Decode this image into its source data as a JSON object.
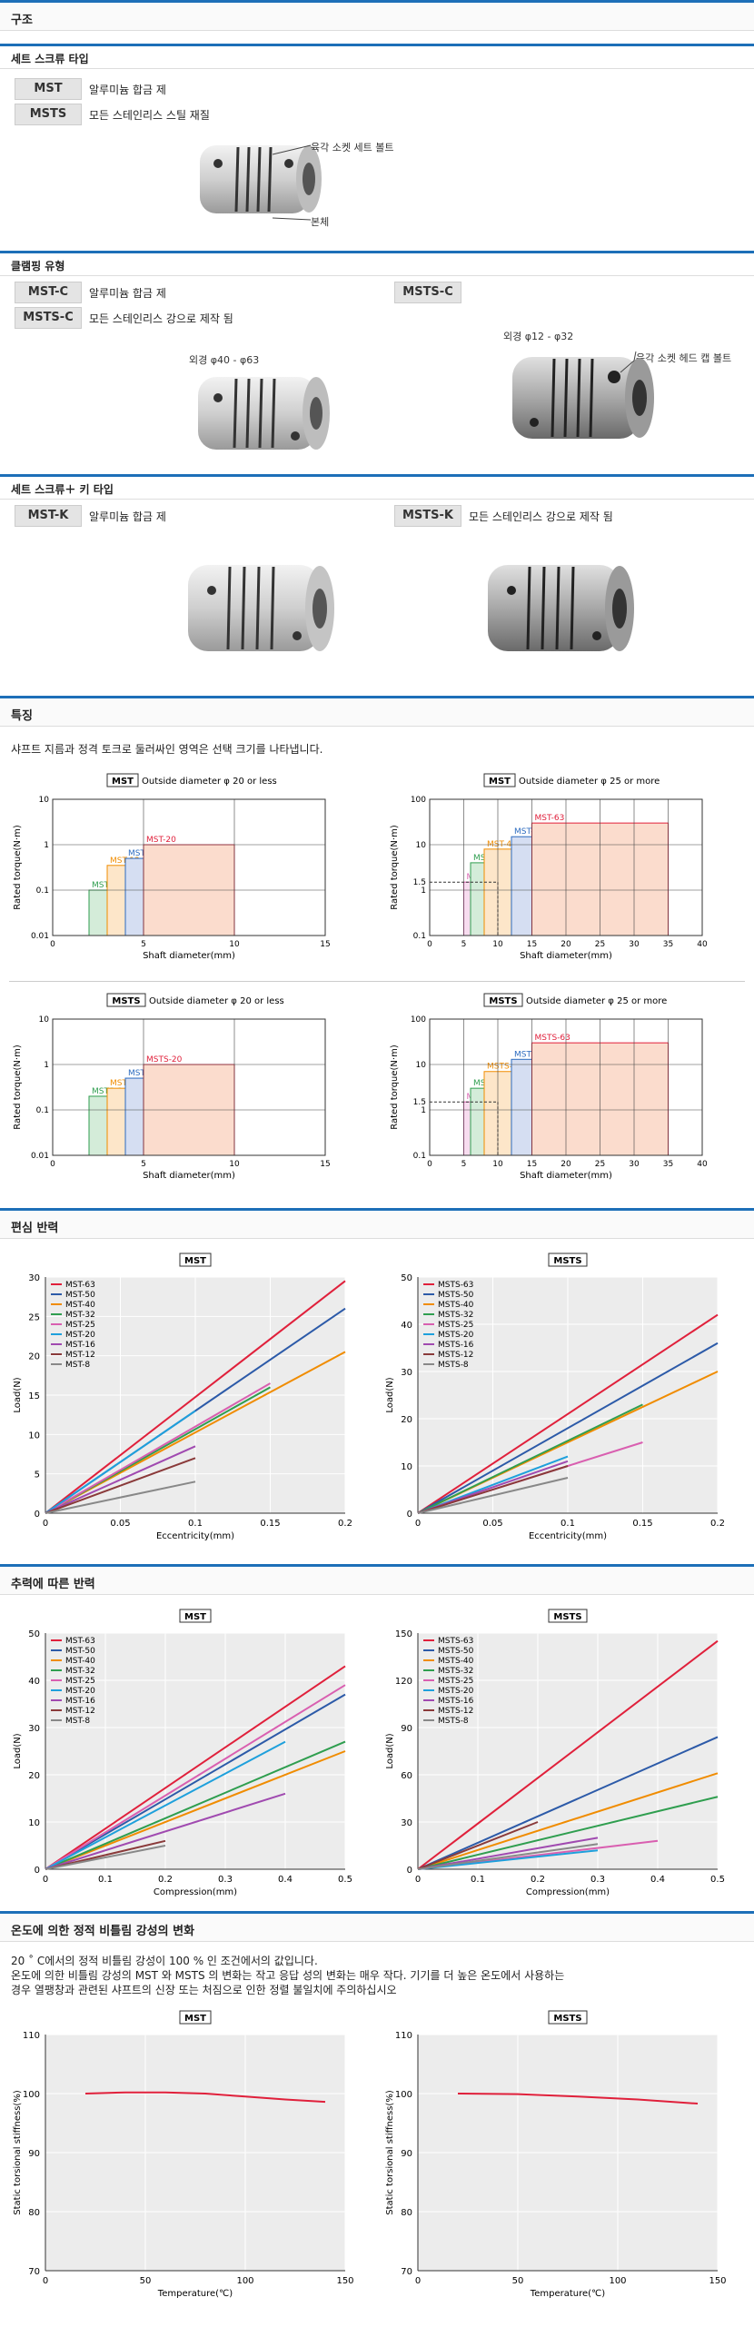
{
  "sections": {
    "structure": "구조",
    "features": "특징",
    "eccentric": "편심 반력",
    "axial": "추력에 따른 반력",
    "temperature": "온도에 의한 정적 비틀림 강성의 변화"
  },
  "setscrew": {
    "title": "세트 스크류 타입",
    "rows": [
      {
        "badge": "MST",
        "desc": "알루미늄 합금 제"
      },
      {
        "badge": "MSTS",
        "desc": "모든 스테인리스 스틸 재질"
      }
    ],
    "callout_screw": "육각 소켓 세트 볼트",
    "callout_body": "본체"
  },
  "clamping": {
    "title": "클램핑 유형",
    "rows": [
      {
        "badge": "MST-C",
        "desc": "알루미늄 합금 제"
      },
      {
        "badge": "MSTS-C",
        "desc": "모든 스테인리스 강으로 제작 됨"
      }
    ],
    "right_badge": "MSTS-C",
    "dia_left": "외경 φ40 - φ63",
    "dia_right": "외경 φ12 - φ32",
    "callout_bolt": "육각 소켓 헤드 캡 볼트"
  },
  "key": {
    "title": "세트 스크류＋ 키 타입",
    "left_badge": "MST-K",
    "left_desc": "알루미늄 합금 제",
    "right_badge": "MSTS-K",
    "right_desc": "모든 스테인리스 강으로 제작 됨"
  },
  "features": {
    "note": "샤프트 지름과 정격 토크로 둘러싸인 영역은 선택 크기를 나타냅니다."
  },
  "temperature": {
    "note1": "20 ˚ C에서의 정적 비틀림 강성이 100 % 인 조건에서의 값입니다.",
    "note2": "온도에 의한 비틀림 강성의 MST 와 MSTS 의 변화는 작고 응답 성의 변화는 매우 작다. 기기를 더 높은 온도에서 사용하는",
    "note3": "경우 열팽창과 관련된 샤프트의 신장 또는 처짐으로 인한 정렬 불일치에 주의하십시오"
  },
  "chart_data": [
    {
      "type": "area",
      "title_badge": "MST",
      "title": "Outside diameter φ 20 or less",
      "xlabel": "Shaft diameter(mm)",
      "ylabel": "Rated torque(N·m)",
      "xlim": [
        0,
        15
      ],
      "ylim": [
        0.01,
        10
      ],
      "yscale": "log",
      "xticks": [
        "0",
        "5",
        "10",
        "15"
      ],
      "yticks": [
        "0.01",
        "0.1",
        "1",
        "10"
      ],
      "regions": [
        {
          "name": "MST-8",
          "x": [
            2,
            4
          ],
          "y": 0.1,
          "color": "#2f9e4f",
          "fill": "#d4ecd9"
        },
        {
          "name": "MST-12",
          "x": [
            3,
            6
          ],
          "y": 0.35,
          "color": "#f08c00",
          "fill": "#fde6c9"
        },
        {
          "name": "MST-16",
          "x": [
            4,
            8
          ],
          "y": 0.5,
          "color": "#2c6bbf",
          "fill": "#d5def2"
        },
        {
          "name": "MST-20",
          "x": [
            5,
            10
          ],
          "y": 1,
          "color": "#e0203b",
          "fill": "#fbdccd"
        }
      ]
    },
    {
      "type": "area",
      "title_badge": "MST",
      "title": "Outside diameter φ 25 or more",
      "xlabel": "Shaft diameter(mm)",
      "ylabel": "Rated torque(N·m)",
      "xlim": [
        0,
        40
      ],
      "ylim": [
        0.1,
        100
      ],
      "yscale": "log",
      "xticks": [
        "0",
        "5",
        "10",
        "15",
        "20",
        "25",
        "30",
        "35",
        "40"
      ],
      "yticks": [
        "0.1",
        "1",
        "1.5",
        "10",
        "100"
      ],
      "regions": [
        {
          "name": "MST-25",
          "x": [
            5,
            10
          ],
          "y": 1.5,
          "color": "#d95fb0",
          "fill": "#f7dcef"
        },
        {
          "name": "MST-32",
          "x": [
            6,
            14
          ],
          "y": 4,
          "color": "#2f9e4f",
          "fill": "#d4ecd9"
        },
        {
          "name": "MST-40",
          "x": [
            8,
            16
          ],
          "y": 8,
          "color": "#f08c00",
          "fill": "#fde6c9"
        },
        {
          "name": "MST-50",
          "x": [
            12,
            25
          ],
          "y": 15,
          "color": "#2c6bbf",
          "fill": "#d5def2"
        },
        {
          "name": "MST-63",
          "x": [
            15,
            35
          ],
          "y": 30,
          "color": "#e0203b",
          "fill": "#fbdccd"
        }
      ]
    },
    {
      "type": "area",
      "title_badge": "MSTS",
      "title": "Outside diameter φ 20 or less",
      "xlabel": "Shaft diameter(mm)",
      "ylabel": "Rated torque(N·m)",
      "xlim": [
        0,
        15
      ],
      "ylim": [
        0.01,
        10
      ],
      "yscale": "log",
      "xticks": [
        "0",
        "5",
        "10",
        "15"
      ],
      "yticks": [
        "0.01",
        "0.1",
        "1",
        "10"
      ],
      "regions": [
        {
          "name": "MSTS-8",
          "x": [
            2,
            4
          ],
          "y": 0.2,
          "color": "#2f9e4f",
          "fill": "#d4ecd9"
        },
        {
          "name": "MSTS-12",
          "x": [
            3,
            6
          ],
          "y": 0.3,
          "color": "#f08c00",
          "fill": "#fde6c9"
        },
        {
          "name": "MSTS-16",
          "x": [
            4,
            8
          ],
          "y": 0.5,
          "color": "#2c6bbf",
          "fill": "#d5def2"
        },
        {
          "name": "MSTS-20",
          "x": [
            5,
            10
          ],
          "y": 1,
          "color": "#e0203b",
          "fill": "#fbdccd"
        }
      ]
    },
    {
      "type": "area",
      "title_badge": "MSTS",
      "title": "Outside diameter φ 25 or more",
      "xlabel": "Shaft diameter(mm)",
      "ylabel": "Rated torque(N·m)",
      "xlim": [
        0,
        40
      ],
      "ylim": [
        0.1,
        100
      ],
      "yscale": "log",
      "xticks": [
        "0",
        "5",
        "10",
        "15",
        "20",
        "25",
        "30",
        "35",
        "40"
      ],
      "yticks": [
        "0.1",
        "1",
        "1.5",
        "10",
        "100"
      ],
      "regions": [
        {
          "name": "MSTS-25",
          "x": [
            5,
            10
          ],
          "y": 1.5,
          "color": "#d95fb0",
          "fill": "#f7dcef"
        },
        {
          "name": "MSTS-32",
          "x": [
            6,
            14
          ],
          "y": 3,
          "color": "#2f9e4f",
          "fill": "#d4ecd9"
        },
        {
          "name": "MSTS-40",
          "x": [
            8,
            16
          ],
          "y": 7,
          "color": "#f08c00",
          "fill": "#fde6c9"
        },
        {
          "name": "MSTS-50",
          "x": [
            12,
            25
          ],
          "y": 13,
          "color": "#2c6bbf",
          "fill": "#d5def2"
        },
        {
          "name": "MSTS-63",
          "x": [
            15,
            35
          ],
          "y": 30,
          "color": "#e0203b",
          "fill": "#fbdccd"
        }
      ]
    },
    {
      "type": "line",
      "title": "MST",
      "xlabel": "Eccentricity(mm)",
      "ylabel": "Load(N)",
      "xlim": [
        0,
        0.2
      ],
      "ylim": [
        0,
        30
      ],
      "xticks": [
        "0",
        "0.05",
        "0.1",
        "0.15",
        "0.2"
      ],
      "yticks": [
        "0",
        "5",
        "10",
        "15",
        "20",
        "25",
        "30"
      ],
      "series": [
        {
          "name": "MST-63",
          "color": "#e0203b",
          "x": [
            0,
            0.2
          ],
          "y": [
            0,
            29.5
          ]
        },
        {
          "name": "MST-50",
          "color": "#2c5aa8",
          "x": [
            0,
            0.2
          ],
          "y": [
            0,
            26
          ]
        },
        {
          "name": "MST-40",
          "color": "#f08c00",
          "x": [
            0,
            0.2
          ],
          "y": [
            0,
            20.5
          ]
        },
        {
          "name": "MST-32",
          "color": "#2f9e4f",
          "x": [
            0,
            0.15
          ],
          "y": [
            0,
            16
          ]
        },
        {
          "name": "MST-25",
          "color": "#d95fb0",
          "x": [
            0,
            0.15
          ],
          "y": [
            0,
            16.5
          ]
        },
        {
          "name": "MST-20",
          "color": "#1ea0dc",
          "x": [
            0,
            0.1
          ],
          "y": [
            0,
            13
          ]
        },
        {
          "name": "MST-16",
          "color": "#a04ab0",
          "x": [
            0,
            0.1
          ],
          "y": [
            0,
            8.5
          ]
        },
        {
          "name": "MST-12",
          "color": "#8a3a3a",
          "x": [
            0,
            0.1
          ],
          "y": [
            0,
            7
          ]
        },
        {
          "name": "MST-8",
          "color": "#888888",
          "x": [
            0,
            0.1
          ],
          "y": [
            0,
            4
          ]
        }
      ]
    },
    {
      "type": "line",
      "title": "MSTS",
      "xlabel": "Eccentricity(mm)",
      "ylabel": "Load(N)",
      "xlim": [
        0,
        0.2
      ],
      "ylim": [
        0,
        50
      ],
      "xticks": [
        "0",
        "0.05",
        "0.1",
        "0.15",
        "0.2"
      ],
      "yticks": [
        "0",
        "10",
        "20",
        "30",
        "40",
        "50"
      ],
      "series": [
        {
          "name": "MSTS-63",
          "color": "#e0203b",
          "x": [
            0,
            0.2
          ],
          "y": [
            0,
            42
          ]
        },
        {
          "name": "MSTS-50",
          "color": "#2c5aa8",
          "x": [
            0,
            0.2
          ],
          "y": [
            0,
            36
          ]
        },
        {
          "name": "MSTS-40",
          "color": "#f08c00",
          "x": [
            0,
            0.2
          ],
          "y": [
            0,
            30
          ]
        },
        {
          "name": "MSTS-32",
          "color": "#2f9e4f",
          "x": [
            0,
            0.15
          ],
          "y": [
            0,
            23
          ]
        },
        {
          "name": "MSTS-25",
          "color": "#d95fb0",
          "x": [
            0,
            0.15
          ],
          "y": [
            0,
            15
          ]
        },
        {
          "name": "MSTS-20",
          "color": "#1ea0dc",
          "x": [
            0,
            0.1
          ],
          "y": [
            0,
            12
          ]
        },
        {
          "name": "MSTS-16",
          "color": "#a04ab0",
          "x": [
            0,
            0.1
          ],
          "y": [
            0,
            11
          ]
        },
        {
          "name": "MSTS-12",
          "color": "#8a3a3a",
          "x": [
            0,
            0.1
          ],
          "y": [
            0,
            10
          ]
        },
        {
          "name": "MSTS-8",
          "color": "#888888",
          "x": [
            0,
            0.1
          ],
          "y": [
            0,
            7.5
          ]
        }
      ]
    },
    {
      "type": "line",
      "title": "MST",
      "xlabel": "Compression(mm)",
      "ylabel": "Load(N)",
      "xlim": [
        0,
        0.5
      ],
      "ylim": [
        0,
        50
      ],
      "xticks": [
        "0",
        "0.1",
        "0.2",
        "0.3",
        "0.4",
        "0.5"
      ],
      "yticks": [
        "0",
        "10",
        "20",
        "30",
        "40",
        "50"
      ],
      "series": [
        {
          "name": "MST-63",
          "color": "#e0203b",
          "x": [
            0,
            0.5
          ],
          "y": [
            0,
            43
          ]
        },
        {
          "name": "MST-50",
          "color": "#2c5aa8",
          "x": [
            0,
            0.5
          ],
          "y": [
            0,
            37
          ]
        },
        {
          "name": "MST-40",
          "color": "#f08c00",
          "x": [
            0,
            0.5
          ],
          "y": [
            0,
            25
          ]
        },
        {
          "name": "MST-32",
          "color": "#2f9e4f",
          "x": [
            0,
            0.5
          ],
          "y": [
            0,
            27
          ]
        },
        {
          "name": "MST-25",
          "color": "#d95fb0",
          "x": [
            0,
            0.5
          ],
          "y": [
            0,
            39
          ]
        },
        {
          "name": "MST-20",
          "color": "#1ea0dc",
          "x": [
            0,
            0.4
          ],
          "y": [
            0,
            27
          ]
        },
        {
          "name": "MST-16",
          "color": "#a04ab0",
          "x": [
            0,
            0.4
          ],
          "y": [
            0,
            16
          ]
        },
        {
          "name": "MST-12",
          "color": "#8a3a3a",
          "x": [
            0,
            0.2
          ],
          "y": [
            0,
            6
          ]
        },
        {
          "name": "MST-8",
          "color": "#888888",
          "x": [
            0,
            0.2
          ],
          "y": [
            0,
            5
          ]
        }
      ]
    },
    {
      "type": "line",
      "title": "MSTS",
      "xlabel": "Compression(mm)",
      "ylabel": "Load(N)",
      "xlim": [
        0,
        0.5
      ],
      "ylim": [
        0,
        150
      ],
      "xticks": [
        "0",
        "0.1",
        "0.2",
        "0.3",
        "0.4",
        "0.5"
      ],
      "yticks": [
        "0",
        "30",
        "60",
        "90",
        "120",
        "150"
      ],
      "series": [
        {
          "name": "MSTS-63",
          "color": "#e0203b",
          "x": [
            0,
            0.5
          ],
          "y": [
            0,
            145
          ]
        },
        {
          "name": "MSTS-50",
          "color": "#2c5aa8",
          "x": [
            0,
            0.5
          ],
          "y": [
            0,
            84
          ]
        },
        {
          "name": "MSTS-40",
          "color": "#f08c00",
          "x": [
            0,
            0.5
          ],
          "y": [
            0,
            61
          ]
        },
        {
          "name": "MSTS-32",
          "color": "#2f9e4f",
          "x": [
            0,
            0.5
          ],
          "y": [
            0,
            46
          ]
        },
        {
          "name": "MSTS-25",
          "color": "#d95fb0",
          "x": [
            0,
            0.4
          ],
          "y": [
            0,
            18
          ]
        },
        {
          "name": "MSTS-20",
          "color": "#1ea0dc",
          "x": [
            0,
            0.3
          ],
          "y": [
            0,
            12
          ]
        },
        {
          "name": "MSTS-16",
          "color": "#a04ab0",
          "x": [
            0,
            0.3
          ],
          "y": [
            0,
            20
          ]
        },
        {
          "name": "MSTS-12",
          "color": "#8a3a3a",
          "x": [
            0,
            0.2
          ],
          "y": [
            0,
            30
          ]
        },
        {
          "name": "MSTS-8",
          "color": "#888888",
          "x": [
            0,
            0.3
          ],
          "y": [
            0,
            16
          ]
        }
      ]
    },
    {
      "type": "line",
      "title": "MST",
      "xlabel": "Temperature(℃)",
      "ylabel": "Static torsional stiffness(%)",
      "xlim": [
        0,
        150
      ],
      "ylim": [
        70,
        110
      ],
      "xticks": [
        "0",
        "50",
        "100",
        "150"
      ],
      "yticks": [
        "70",
        "80",
        "90",
        "100",
        "110"
      ],
      "series": [
        {
          "color": "#e0203b",
          "x": [
            20,
            40,
            60,
            80,
            100,
            120,
            140
          ],
          "y": [
            100,
            100.2,
            100.2,
            100,
            99.5,
            99,
            98.6
          ]
        }
      ]
    },
    {
      "type": "line",
      "title": "MSTS",
      "xlabel": "Temperature(℃)",
      "ylabel": "Static torsional stiffness(%)",
      "xlim": [
        0,
        150
      ],
      "ylim": [
        70,
        110
      ],
      "xticks": [
        "0",
        "50",
        "100",
        "150"
      ],
      "yticks": [
        "70",
        "80",
        "90",
        "100",
        "110"
      ],
      "series": [
        {
          "color": "#e0203b",
          "x": [
            20,
            50,
            80,
            110,
            140
          ],
          "y": [
            100,
            99.9,
            99.5,
            99,
            98.3
          ]
        }
      ]
    }
  ]
}
